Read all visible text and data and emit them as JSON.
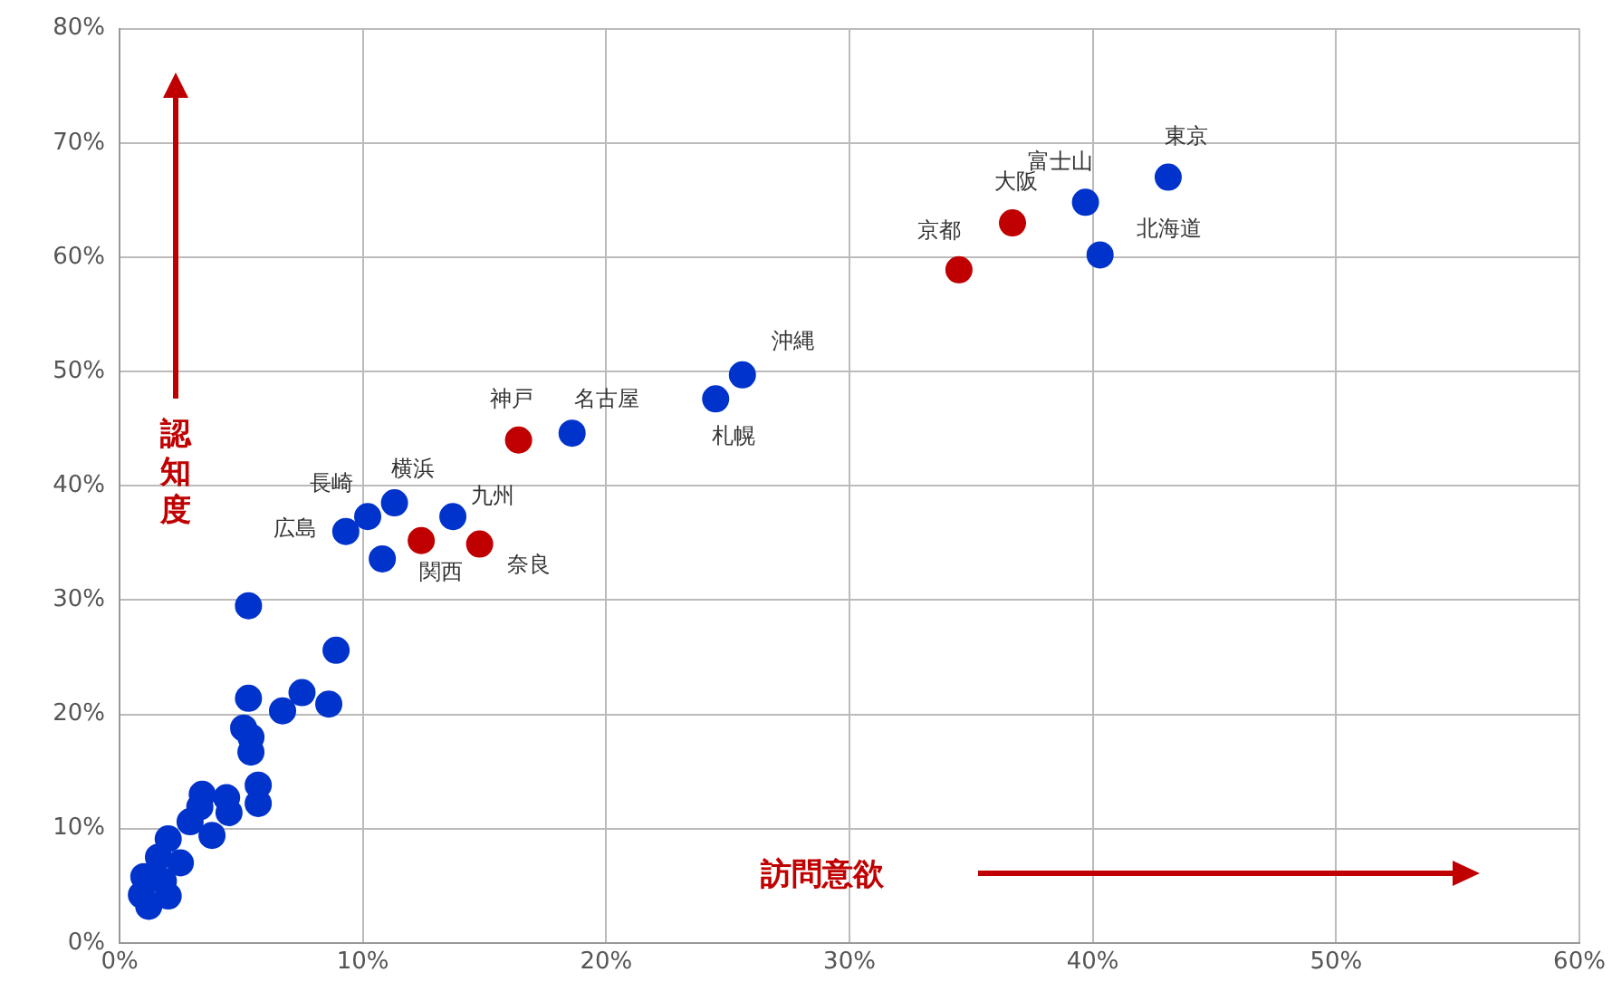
{
  "chart_data": {
    "type": "scatter",
    "xlabel": "訪問意欲",
    "ylabel": "認知度",
    "xlim": [
      0,
      60
    ],
    "xticks": [
      {
        "value": 0,
        "label": "0%"
      },
      {
        "value": 10,
        "label": "10%"
      },
      {
        "value": 20,
        "label": "20%"
      },
      {
        "value": 30,
        "label": "30%"
      },
      {
        "value": 40,
        "label": "40%"
      },
      {
        "value": 50,
        "label": "50%"
      },
      {
        "value": 60,
        "label": "60%"
      }
    ],
    "ylim": [
      0,
      80
    ],
    "yticks": [
      {
        "value": 0,
        "label": "0%"
      },
      {
        "value": 10,
        "label": "10%"
      },
      {
        "value": 20,
        "label": "20%"
      },
      {
        "value": 30,
        "label": "30%"
      },
      {
        "value": 40,
        "label": "40%"
      },
      {
        "value": 50,
        "label": "50%"
      },
      {
        "value": 60,
        "label": "60%"
      },
      {
        "value": 70,
        "label": "70%"
      },
      {
        "value": 80,
        "label": "80%"
      }
    ],
    "grid": true,
    "legend": false,
    "marker": "circle",
    "series": [
      {
        "color": "#c00000",
        "x": [
          36.7,
          34.5,
          16.4,
          12.4,
          14.8
        ],
        "values": [
          63.0,
          58.9,
          44.0,
          35.2,
          34.9
        ]
      },
      {
        "color": "#0033cc",
        "x": [
          43.1,
          39.7,
          40.3,
          25.6,
          24.5,
          18.6,
          11.3,
          10.2,
          9.3,
          13.7,
          10.8,
          5.3,
          8.9,
          8.6,
          7.5,
          6.7,
          5.3,
          5.1,
          5.4,
          5.4,
          5.7,
          5.7,
          3.4,
          3.8,
          4.5,
          2.0,
          1.6,
          2.5,
          1.0,
          0.9,
          1.2,
          2.0,
          3.3,
          2.9,
          4.4,
          1.8
        ],
        "values": [
          67.0,
          64.8,
          60.2,
          49.7,
          47.6,
          44.6,
          38.5,
          37.3,
          36.0,
          37.3,
          33.6,
          29.5,
          25.6,
          20.9,
          21.9,
          20.3,
          21.4,
          18.8,
          18.0,
          16.7,
          13.8,
          12.2,
          13.0,
          9.4,
          11.4,
          9.1,
          7.5,
          7.0,
          5.8,
          4.2,
          3.2,
          4.1,
          11.9,
          10.6,
          12.7,
          5.4
        ]
      }
    ],
    "annotations": [
      {
        "text": "東京",
        "x": 43.1,
        "y": 67.0
      },
      {
        "text": "富士山",
        "x": 39.7,
        "y": 64.8
      },
      {
        "text": "北海道",
        "x": 40.3,
        "y": 60.2
      },
      {
        "text": "大阪",
        "x": 36.7,
        "y": 63.0
      },
      {
        "text": "京都",
        "x": 34.5,
        "y": 58.9
      },
      {
        "text": "沖縄",
        "x": 25.6,
        "y": 49.7
      },
      {
        "text": "札幌",
        "x": 24.5,
        "y": 47.6
      },
      {
        "text": "名古屋",
        "x": 18.6,
        "y": 44.6
      },
      {
        "text": "神戸",
        "x": 16.4,
        "y": 44.0
      },
      {
        "text": "横浜",
        "x": 11.3,
        "y": 38.5
      },
      {
        "text": "長崎",
        "x": 10.2,
        "y": 37.3
      },
      {
        "text": "広島",
        "x": 9.3,
        "y": 36.0
      },
      {
        "text": "九州",
        "x": 13.7,
        "y": 37.3
      },
      {
        "text": "関西",
        "x": 12.4,
        "y": 35.2
      },
      {
        "text": "奈良",
        "x": 14.8,
        "y": 34.9
      }
    ]
  }
}
